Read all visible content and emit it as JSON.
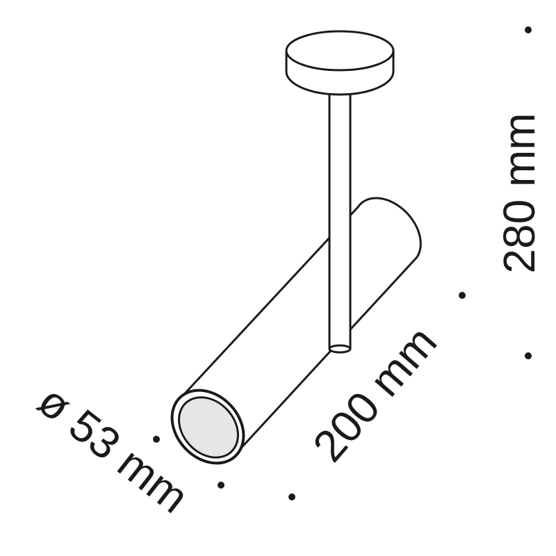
{
  "dimensions": {
    "diameter": "ø 53 mm",
    "length": "200 mm",
    "height": "280 mm"
  },
  "colors": {
    "line": "#1a1a1a",
    "fill": "#ffffff",
    "lens": "#e6e6e6"
  }
}
